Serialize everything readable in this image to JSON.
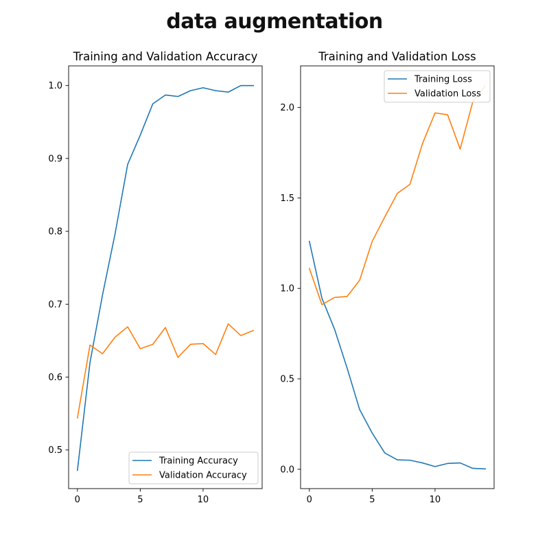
{
  "figure": {
    "title": "data augmentation"
  },
  "colors": {
    "training": "#1f77b4",
    "validation": "#ff7f0e"
  },
  "chart_data": [
    {
      "type": "line",
      "title": "Training and Validation Accuracy",
      "xlabel": "",
      "ylabel": "",
      "xlim": [
        -0.7,
        14.7
      ],
      "ylim": [
        0.447,
        1.027
      ],
      "xticks": [
        0,
        5,
        10
      ],
      "yticks": [
        0.5,
        0.6,
        0.7,
        0.8,
        0.9,
        1.0
      ],
      "ytick_labels": [
        "0.5",
        "0.6",
        "0.7",
        "0.8",
        "0.9",
        "1.0"
      ],
      "grid": false,
      "legend_position": "lower-right",
      "x": [
        0,
        1,
        2,
        3,
        4,
        5,
        6,
        7,
        8,
        9,
        10,
        11,
        12,
        13,
        14
      ],
      "series": [
        {
          "name": "Training Accuracy",
          "color": "#1f77b4",
          "values": [
            0.472,
            0.62,
            0.713,
            0.797,
            0.892,
            0.932,
            0.975,
            0.987,
            0.985,
            0.993,
            0.997,
            0.993,
            0.991,
            1.0,
            1.0
          ]
        },
        {
          "name": "Validation Accuracy",
          "color": "#ff7f0e",
          "values": [
            0.544,
            0.644,
            0.632,
            0.655,
            0.669,
            0.639,
            0.645,
            0.668,
            0.627,
            0.645,
            0.646,
            0.631,
            0.673,
            0.657,
            0.664
          ]
        }
      ]
    },
    {
      "type": "line",
      "title": "Training and Validation Loss",
      "xlabel": "",
      "ylabel": "",
      "xlim": [
        -0.7,
        14.7
      ],
      "ylim": [
        -0.107,
        2.23
      ],
      "xticks": [
        0,
        5,
        10
      ],
      "yticks": [
        0.0,
        0.5,
        1.0,
        1.5,
        2.0
      ],
      "ytick_labels": [
        "0.0",
        "0.5",
        "1.0",
        "1.5",
        "2.0"
      ],
      "grid": false,
      "legend_position": "upper-right",
      "x": [
        0,
        1,
        2,
        3,
        4,
        5,
        6,
        7,
        8,
        9,
        10,
        11,
        12,
        13,
        14
      ],
      "series": [
        {
          "name": "Training Loss",
          "color": "#1f77b4",
          "values": [
            1.26,
            0.945,
            0.775,
            0.56,
            0.33,
            0.2,
            0.09,
            0.052,
            0.05,
            0.035,
            0.015,
            0.032,
            0.035,
            0.005,
            0.002
          ]
        },
        {
          "name": "Validation Loss",
          "color": "#ff7f0e",
          "values": [
            1.11,
            0.91,
            0.95,
            0.955,
            1.045,
            1.26,
            1.395,
            1.525,
            1.575,
            1.8,
            1.97,
            1.96,
            1.77,
            2.03,
            2.12
          ]
        }
      ]
    }
  ]
}
